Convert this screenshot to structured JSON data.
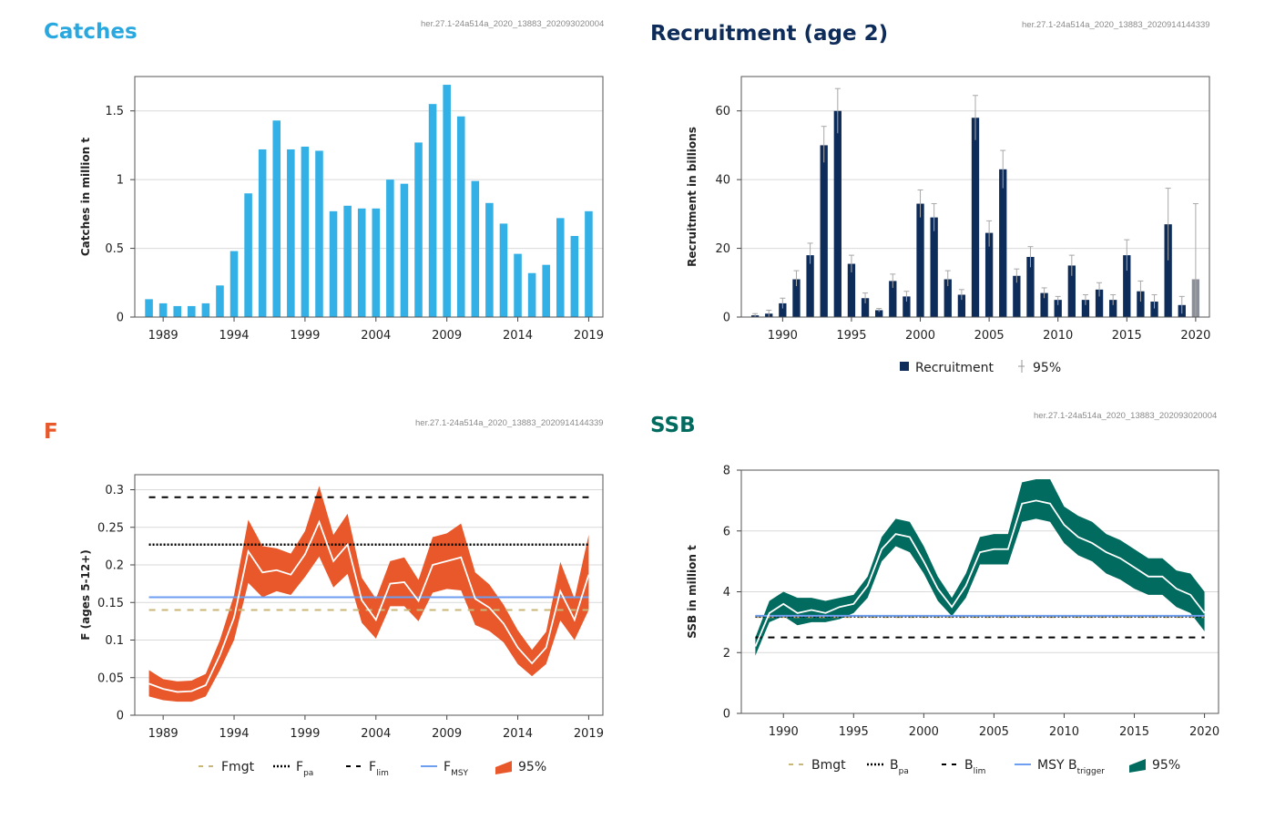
{
  "panels": {
    "catches": {
      "title": "Catches",
      "title_color": "#29a8e0",
      "id": "her.27.1-24a514a_2020_13883_202093020004"
    },
    "recruitment": {
      "title": "Recruitment (age 2)",
      "title_color": "#0e2c5a",
      "id": "her.27.1-24a514a_2020_13883_2020914144339"
    },
    "f": {
      "title": "F",
      "title_color": "#e8582a",
      "id": "her.27.1-24a514a_2020_13883_2020914144339"
    },
    "ssb": {
      "title": "SSB",
      "title_color": "#006b5e",
      "id": "her.27.1-24a514a_2020_13883_202093020004"
    }
  },
  "chart_data": [
    {
      "id": "catches",
      "type": "bar",
      "ylabel": "Catches in million t",
      "xlabel": "",
      "xlim": [
        1987,
        2020
      ],
      "ylim": [
        0,
        1.75
      ],
      "yticks": [
        0,
        0.5,
        1,
        1.5
      ],
      "ytick_labels": [
        "0",
        "0.5",
        "1",
        "1.5"
      ],
      "xticks": [
        1989,
        1994,
        1999,
        2004,
        2009,
        2014,
        2019
      ],
      "xtick_labels": [
        "1989",
        "1994",
        "1999",
        "2004",
        "2009",
        "2014",
        "2019"
      ],
      "grid": true,
      "legend": "none",
      "color": "#33b1e6",
      "years": [
        1988,
        1989,
        1990,
        1991,
        1992,
        1993,
        1994,
        1995,
        1996,
        1997,
        1998,
        1999,
        2000,
        2001,
        2002,
        2003,
        2004,
        2005,
        2006,
        2007,
        2008,
        2009,
        2010,
        2011,
        2012,
        2013,
        2014,
        2015,
        2016,
        2017,
        2018,
        2019
      ],
      "values": [
        0.13,
        0.1,
        0.08,
        0.08,
        0.1,
        0.23,
        0.48,
        0.9,
        1.22,
        1.43,
        1.22,
        1.24,
        1.21,
        0.77,
        0.81,
        0.79,
        0.79,
        1.0,
        0.97,
        1.27,
        1.55,
        1.69,
        1.46,
        0.99,
        0.83,
        0.68,
        0.46,
        0.32,
        0.38,
        0.72,
        0.59,
        0.77
      ]
    },
    {
      "id": "recruitment",
      "type": "bar",
      "ylabel": "Recruitment in billions",
      "xlabel": "",
      "xlim": [
        1987,
        2021
      ],
      "ylim": [
        0,
        70
      ],
      "yticks": [
        0,
        20,
        40,
        60
      ],
      "ytick_labels": [
        "0",
        "20",
        "40",
        "60"
      ],
      "xticks": [
        1990,
        1995,
        2000,
        2005,
        2010,
        2015,
        2020
      ],
      "xtick_labels": [
        "1990",
        "1995",
        "2000",
        "2005",
        "2010",
        "2015",
        "2020"
      ],
      "grid": true,
      "legend": "bottom",
      "legend_items": [
        {
          "label": "Recruitment",
          "symbol": "square",
          "color": "#0e2c5a"
        },
        {
          "label": "95%",
          "symbol": "errorbar",
          "color": "#999999"
        }
      ],
      "color": "#0e2c5a",
      "last_color": "#8a8f99",
      "years": [
        1988,
        1989,
        1990,
        1991,
        1992,
        1993,
        1994,
        1995,
        1996,
        1997,
        1998,
        1999,
        2000,
        2001,
        2002,
        2003,
        2004,
        2005,
        2006,
        2007,
        2008,
        2009,
        2010,
        2011,
        2012,
        2013,
        2014,
        2015,
        2016,
        2017,
        2018,
        2019,
        2020
      ],
      "values": [
        0.5,
        1,
        4,
        11,
        18,
        50,
        60,
        15.5,
        5.5,
        2,
        10.5,
        6,
        33,
        29,
        11,
        6.5,
        58,
        24.5,
        43,
        12,
        17.5,
        7,
        5,
        15,
        5,
        8,
        5,
        18,
        7.5,
        4.5,
        27,
        3.5,
        11
      ],
      "ci_upper": [
        1,
        2,
        5.5,
        13.5,
        21.5,
        55.5,
        66.5,
        18,
        7,
        2.5,
        12.5,
        7.5,
        37,
        33,
        13.5,
        8,
        64.5,
        28,
        48.5,
        14,
        20.5,
        8.5,
        6,
        18,
        6.5,
        10,
        6.5,
        22.5,
        10.5,
        6.5,
        37.5,
        6,
        33
      ],
      "ci_lower": [
        0,
        0,
        2.5,
        9,
        15.5,
        45,
        53.5,
        13,
        4,
        1.5,
        8.5,
        4.5,
        29,
        25,
        9,
        5,
        51.5,
        20.5,
        37.5,
        10,
        14.5,
        5.5,
        3.5,
        12,
        3.5,
        6,
        3.5,
        13.5,
        4.5,
        2.5,
        16.5,
        1,
        0
      ]
    },
    {
      "id": "f",
      "type": "line",
      "ylabel": "F (ages 5-12+)",
      "xlabel": "",
      "xlim": [
        1987,
        2020
      ],
      "ylim": [
        0,
        0.32
      ],
      "yticks": [
        0,
        0.05,
        0.1,
        0.15,
        0.2,
        0.25,
        0.3
      ],
      "ytick_labels": [
        "0",
        "0.05",
        "0.1",
        "0.15",
        "0.2",
        "0.25",
        "0.3"
      ],
      "xticks": [
        1989,
        1994,
        1999,
        2004,
        2009,
        2014,
        2019
      ],
      "xtick_labels": [
        "1989",
        "1994",
        "1999",
        "2004",
        "2009",
        "2014",
        "2019"
      ],
      "grid": true,
      "legend": "bottom",
      "band_color": "#e8582a",
      "years": [
        1988,
        1989,
        1990,
        1991,
        1992,
        1993,
        1994,
        1995,
        1996,
        1997,
        1998,
        1999,
        2000,
        2001,
        2002,
        2003,
        2004,
        2005,
        2006,
        2007,
        2008,
        2009,
        2010,
        2011,
        2012,
        2013,
        2014,
        2015,
        2016,
        2017,
        2018,
        2019
      ],
      "values": [
        0.042,
        0.035,
        0.031,
        0.032,
        0.04,
        0.08,
        0.13,
        0.218,
        0.19,
        0.193,
        0.187,
        0.214,
        0.257,
        0.205,
        0.227,
        0.153,
        0.127,
        0.175,
        0.177,
        0.152,
        0.2,
        0.205,
        0.21,
        0.155,
        0.143,
        0.122,
        0.09,
        0.069,
        0.09,
        0.165,
        0.127,
        0.187
      ],
      "upper": [
        0.06,
        0.048,
        0.045,
        0.046,
        0.055,
        0.1,
        0.16,
        0.26,
        0.225,
        0.222,
        0.215,
        0.245,
        0.305,
        0.24,
        0.268,
        0.183,
        0.155,
        0.205,
        0.21,
        0.18,
        0.237,
        0.242,
        0.255,
        0.19,
        0.174,
        0.147,
        0.113,
        0.087,
        0.111,
        0.204,
        0.155,
        0.24
      ],
      "lower": [
        0.025,
        0.02,
        0.018,
        0.018,
        0.025,
        0.06,
        0.1,
        0.176,
        0.157,
        0.165,
        0.16,
        0.184,
        0.211,
        0.17,
        0.188,
        0.123,
        0.102,
        0.145,
        0.145,
        0.125,
        0.163,
        0.168,
        0.166,
        0.12,
        0.112,
        0.097,
        0.068,
        0.052,
        0.068,
        0.126,
        0.1,
        0.14
      ],
      "reference_lines": [
        {
          "name": "Fmgt",
          "value": 0.14,
          "color": "#c9b77a",
          "style": "dashed"
        },
        {
          "name": "Fpa",
          "value": 0.227,
          "color": "#000000",
          "style": "dotted"
        },
        {
          "name": "Flim",
          "value": 0.29,
          "color": "#000000",
          "style": "dashed"
        },
        {
          "name": "FMSY",
          "value": 0.157,
          "color": "#6d9eef",
          "style": "solid"
        }
      ],
      "legend_items": [
        {
          "label": "Fmgt",
          "sub": "",
          "symbol": "dashed",
          "color": "#c9b77a"
        },
        {
          "label": "F",
          "sub": "pa",
          "symbol": "dotted",
          "color": "#000000"
        },
        {
          "label": "F",
          "sub": "lim",
          "symbol": "dashed",
          "color": "#000000"
        },
        {
          "label": "F",
          "sub": "MSY",
          "symbol": "solid",
          "color": "#6d9eef"
        },
        {
          "label": "95%",
          "sub": "",
          "symbol": "band",
          "color": "#e8582a"
        }
      ]
    },
    {
      "id": "ssb",
      "type": "line",
      "ylabel": "SSB in million t",
      "xlabel": "",
      "xlim": [
        1987,
        2021
      ],
      "ylim": [
        0,
        8
      ],
      "yticks": [
        0,
        2,
        4,
        6,
        8
      ],
      "ytick_labels": [
        "0",
        "2",
        "4",
        "6",
        "8"
      ],
      "xticks": [
        1990,
        1995,
        2000,
        2005,
        2010,
        2015,
        2020
      ],
      "xtick_labels": [
        "1990",
        "1995",
        "2000",
        "2005",
        "2010",
        "2015",
        "2020"
      ],
      "grid": true,
      "legend": "bottom",
      "band_color": "#006b5e",
      "years": [
        1988,
        1989,
        1990,
        1991,
        1992,
        1993,
        1994,
        1995,
        1996,
        1997,
        1998,
        1999,
        2000,
        2001,
        2002,
        2003,
        2004,
        2005,
        2006,
        2007,
        2008,
        2009,
        2010,
        2011,
        2012,
        2013,
        2014,
        2015,
        2016,
        2017,
        2018,
        2019,
        2020
      ],
      "values": [
        2.2,
        3.3,
        3.6,
        3.3,
        3.4,
        3.3,
        3.5,
        3.6,
        4.2,
        5.4,
        5.9,
        5.8,
        5.0,
        4.1,
        3.5,
        4.2,
        5.3,
        5.4,
        5.4,
        6.9,
        7.0,
        6.9,
        6.2,
        5.8,
        5.6,
        5.3,
        5.1,
        4.8,
        4.5,
        4.5,
        4.1,
        3.9,
        3.3
      ],
      "upper": [
        2.5,
        3.7,
        4.0,
        3.8,
        3.8,
        3.7,
        3.8,
        3.9,
        4.5,
        5.8,
        6.4,
        6.3,
        5.5,
        4.5,
        3.8,
        4.6,
        5.8,
        5.9,
        5.9,
        7.6,
        7.7,
        7.7,
        6.8,
        6.5,
        6.3,
        5.9,
        5.7,
        5.4,
        5.1,
        5.1,
        4.7,
        4.6,
        4.0
      ],
      "lower": [
        1.9,
        3.0,
        3.2,
        2.9,
        3.0,
        3.0,
        3.1,
        3.3,
        3.8,
        5.0,
        5.5,
        5.3,
        4.6,
        3.7,
        3.2,
        3.8,
        4.9,
        4.9,
        4.9,
        6.3,
        6.4,
        6.3,
        5.6,
        5.2,
        5.0,
        4.6,
        4.4,
        4.1,
        3.9,
        3.9,
        3.5,
        3.3,
        2.7
      ],
      "reference_lines": [
        {
          "name": "Bmgt",
          "value": 3.17,
          "color": "#c9b77a",
          "style": "dashed"
        },
        {
          "name": "Bpa",
          "value": 3.19,
          "color": "#000000",
          "style": "dotted"
        },
        {
          "name": "Blim",
          "value": 2.5,
          "color": "#000000",
          "style": "dashed"
        },
        {
          "name": "MSY Btrigger",
          "value": 3.21,
          "color": "#6d9eef",
          "style": "solid"
        }
      ],
      "legend_items": [
        {
          "label": "Bmgt",
          "sub": "",
          "symbol": "dashed",
          "color": "#c9b77a"
        },
        {
          "label": "B",
          "sub": "pa",
          "symbol": "dotted",
          "color": "#000000"
        },
        {
          "label": "B",
          "sub": "lim",
          "symbol": "dashed",
          "color": "#000000"
        },
        {
          "label": "MSY B",
          "sub": "trigger",
          "symbol": "solid",
          "color": "#6d9eef"
        },
        {
          "label": "95%",
          "sub": "",
          "symbol": "band",
          "color": "#006b5e"
        }
      ]
    }
  ]
}
